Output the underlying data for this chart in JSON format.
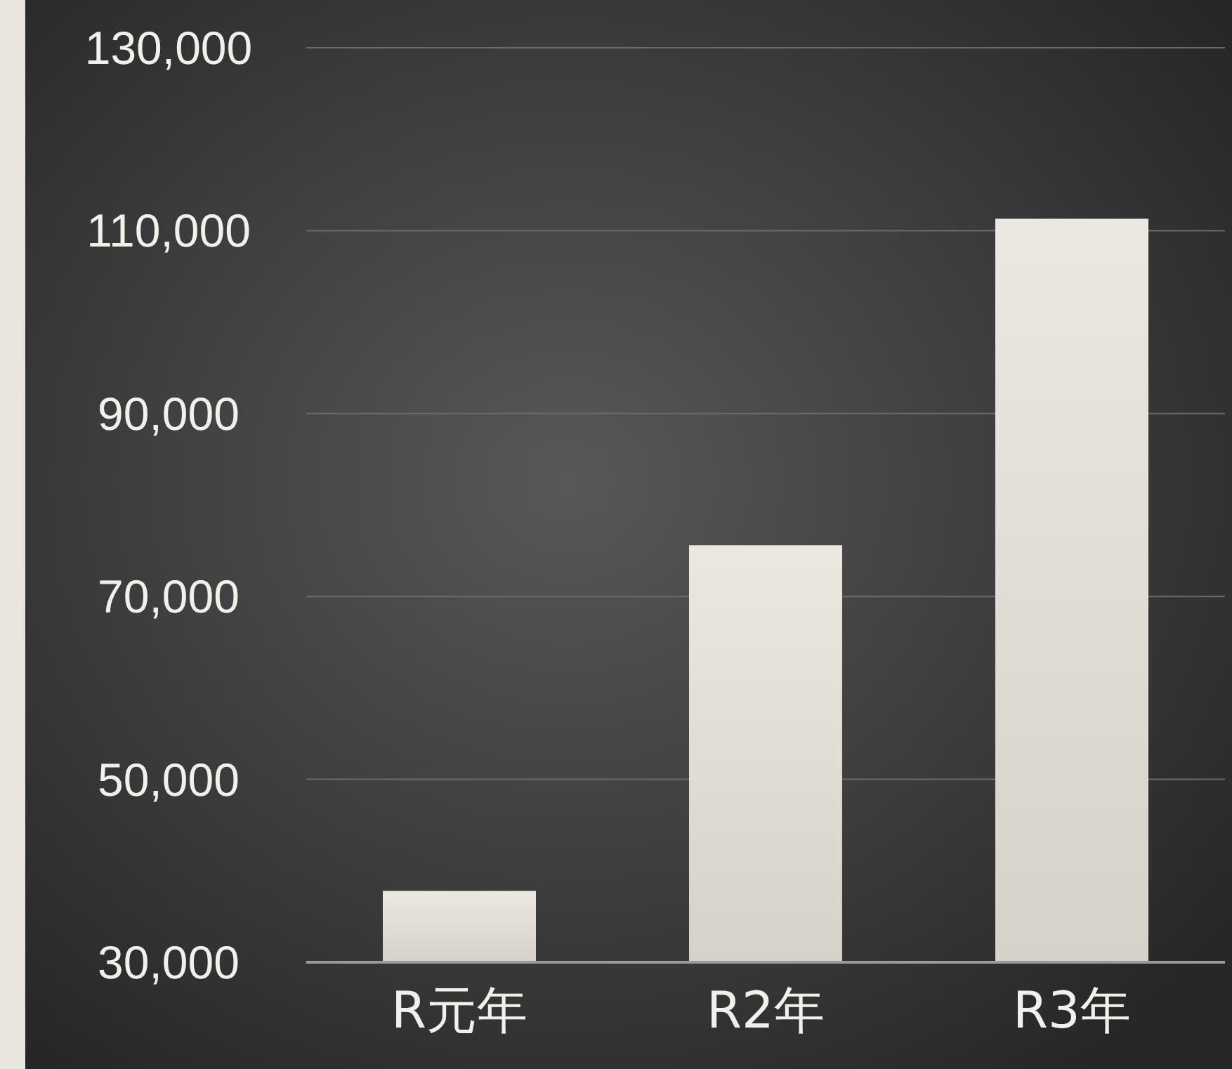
{
  "chart_data": {
    "type": "bar",
    "categories": [
      "R元年",
      "R2年",
      "R3年"
    ],
    "values": [
      37800,
      75600,
      111300
    ],
    "color": "#ebe8e1",
    "ylim": [
      30000,
      130000
    ],
    "yticks": [
      {
        "value": 30000,
        "label": "30,000"
      },
      {
        "value": 50000,
        "label": "50,000"
      },
      {
        "value": 70000,
        "label": "70,000"
      },
      {
        "value": 90000,
        "label": "90,000"
      },
      {
        "value": 110000,
        "label": "110,000"
      },
      {
        "value": 130000,
        "label": "130,000"
      }
    ],
    "grid": "y"
  }
}
